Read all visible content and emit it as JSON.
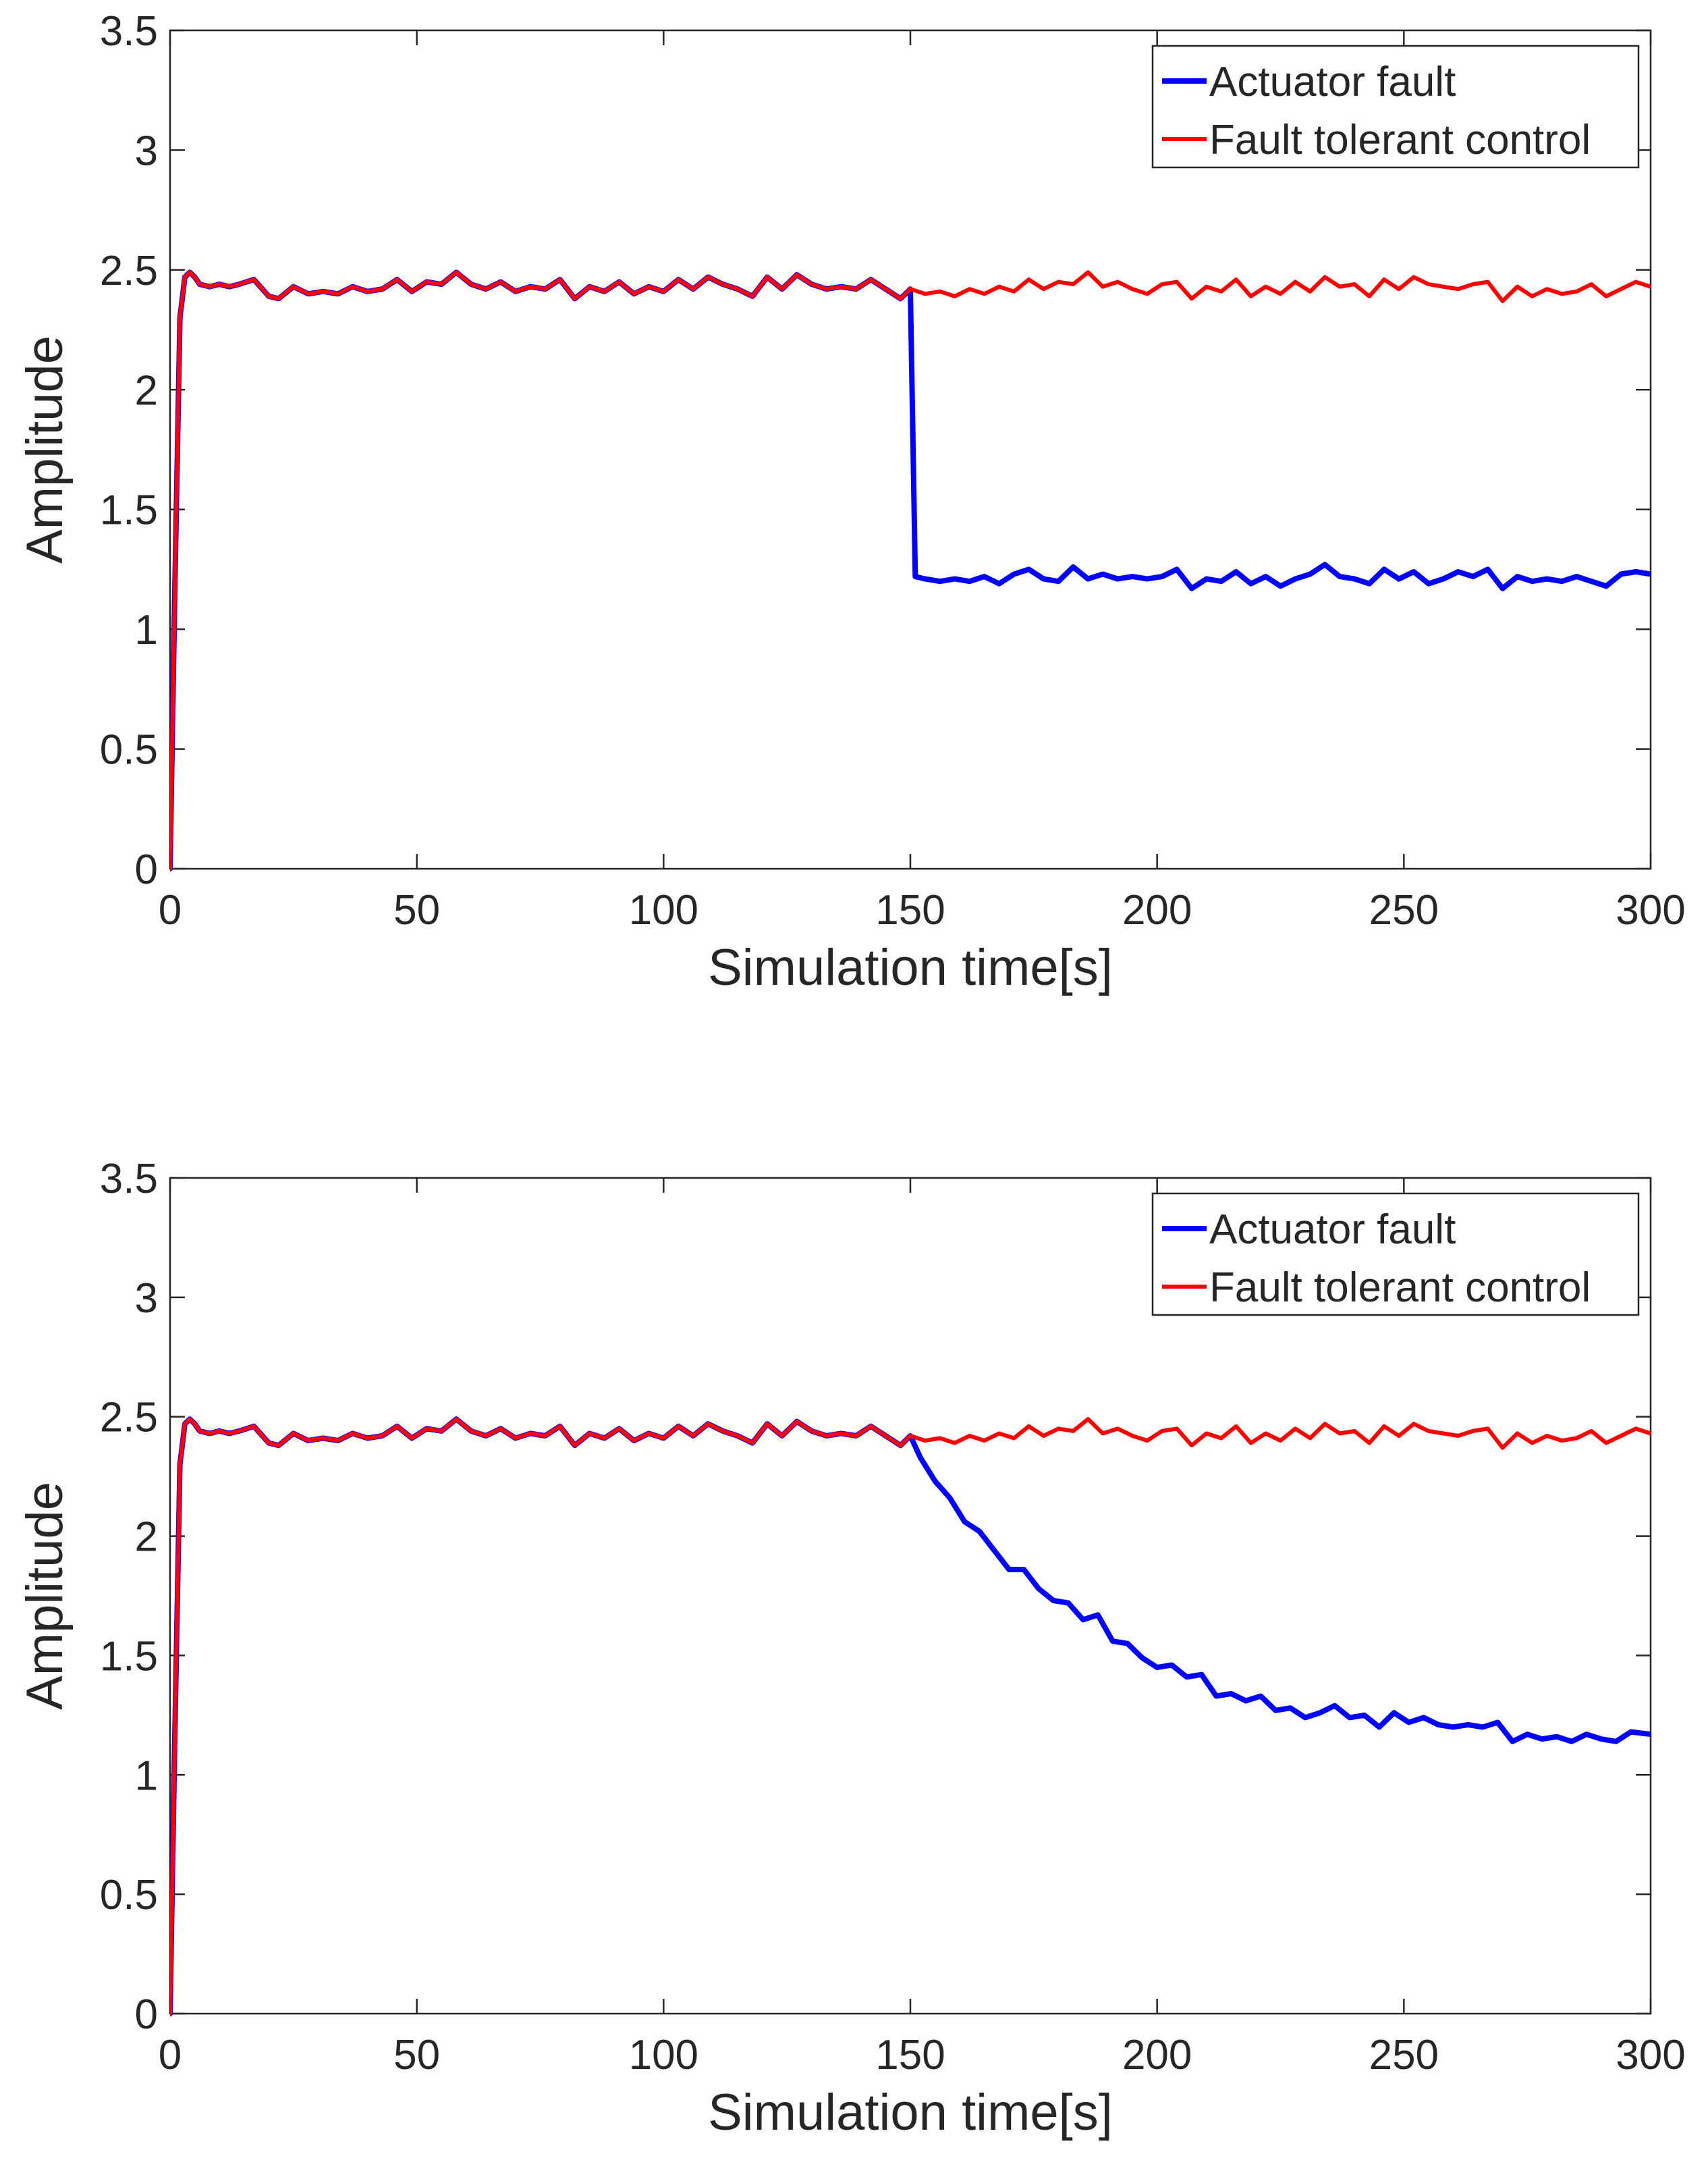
{
  "chart_data": [
    {
      "type": "line",
      "title": "",
      "xlabel": "Simulation time[s]",
      "ylabel": "Amplitude",
      "xlim": [
        0,
        300
      ],
      "ylim": [
        0,
        3.5
      ],
      "xticks": [
        "0",
        "50",
        "100",
        "150",
        "200",
        "250",
        "300"
      ],
      "yticks": [
        "0",
        "0.5",
        "1",
        "1.5",
        "2",
        "2.5",
        "3",
        "3.5"
      ],
      "grid": false,
      "legend_position": "top-right",
      "fault_time": 150,
      "x": [
        0,
        1,
        2,
        3,
        4,
        5,
        6,
        8,
        10,
        12,
        14,
        17,
        20,
        22,
        25,
        28,
        31,
        34,
        37,
        40,
        43,
        46,
        49,
        52,
        55,
        58,
        61,
        64,
        67,
        70,
        73,
        76,
        79,
        82,
        85,
        88,
        91,
        94,
        97,
        100,
        103,
        106,
        109,
        112,
        115,
        118,
        121,
        124,
        127,
        130,
        133,
        136,
        139,
        142,
        145,
        148,
        150
      ],
      "common": [
        0,
        1.2,
        2.3,
        2.47,
        2.49,
        2.47,
        2.44,
        2.43,
        2.44,
        2.43,
        2.44,
        2.46,
        2.39,
        2.38,
        2.43,
        2.4,
        2.41,
        2.4,
        2.43,
        2.41,
        2.42,
        2.46,
        2.41,
        2.45,
        2.44,
        2.49,
        2.44,
        2.42,
        2.45,
        2.41,
        2.43,
        2.42,
        2.46,
        2.38,
        2.43,
        2.41,
        2.45,
        2.4,
        2.43,
        2.41,
        2.46,
        2.42,
        2.47,
        2.44,
        2.42,
        2.39,
        2.47,
        2.42,
        2.48,
        2.44,
        2.42,
        2.43,
        2.42,
        2.46,
        2.42,
        2.38,
        2.42
      ],
      "series": [
        {
          "name": "Actuator fault",
          "color": "#0000ff",
          "after_fault": {
            "x": [
              150,
              151,
              153,
              156,
              159,
              162,
              165,
              168,
              171,
              174,
              177,
              180,
              183,
              186,
              189,
              192,
              195,
              198,
              201,
              204,
              207,
              210,
              213,
              216,
              219,
              222,
              225,
              228,
              231,
              234,
              237,
              240,
              243,
              246,
              249,
              252,
              255,
              258,
              261,
              264,
              267,
              270,
              273,
              276,
              279,
              282,
              285,
              288,
              291,
              294,
              297,
              300
            ],
            "values": [
              2.42,
              1.22,
              1.21,
              1.2,
              1.21,
              1.2,
              1.22,
              1.19,
              1.23,
              1.25,
              1.21,
              1.2,
              1.26,
              1.21,
              1.23,
              1.21,
              1.22,
              1.21,
              1.22,
              1.25,
              1.17,
              1.21,
              1.2,
              1.24,
              1.19,
              1.22,
              1.18,
              1.21,
              1.23,
              1.27,
              1.22,
              1.21,
              1.19,
              1.25,
              1.21,
              1.24,
              1.19,
              1.21,
              1.24,
              1.22,
              1.25,
              1.17,
              1.22,
              1.2,
              1.21,
              1.2,
              1.22,
              1.2,
              1.18,
              1.23,
              1.24,
              1.23
            ]
          }
        },
        {
          "name": "Fault tolerant control",
          "color": "#ff0000",
          "after_fault": {
            "x": [
              150,
              153,
              156,
              159,
              162,
              165,
              168,
              171,
              174,
              177,
              180,
              183,
              186,
              189,
              192,
              195,
              198,
              201,
              204,
              207,
              210,
              213,
              216,
              219,
              222,
              225,
              228,
              231,
              234,
              237,
              240,
              243,
              246,
              249,
              252,
              255,
              258,
              261,
              264,
              267,
              270,
              273,
              276,
              279,
              282,
              285,
              288,
              291,
              294,
              297,
              300
            ],
            "values": [
              2.42,
              2.4,
              2.41,
              2.39,
              2.42,
              2.4,
              2.43,
              2.41,
              2.46,
              2.42,
              2.45,
              2.44,
              2.49,
              2.43,
              2.45,
              2.42,
              2.4,
              2.44,
              2.45,
              2.38,
              2.43,
              2.41,
              2.46,
              2.39,
              2.43,
              2.4,
              2.45,
              2.41,
              2.47,
              2.43,
              2.44,
              2.39,
              2.46,
              2.42,
              2.47,
              2.44,
              2.43,
              2.42,
              2.44,
              2.45,
              2.37,
              2.43,
              2.39,
              2.42,
              2.4,
              2.41,
              2.44,
              2.39,
              2.42,
              2.45,
              2.43
            ]
          }
        }
      ]
    },
    {
      "type": "line",
      "title": "",
      "xlabel": "Simulation time[s]",
      "ylabel": "Amplitude",
      "xlim": [
        0,
        300
      ],
      "ylim": [
        0,
        3.5
      ],
      "xticks": [
        "0",
        "50",
        "100",
        "150",
        "200",
        "250",
        "300"
      ],
      "yticks": [
        "0",
        "0.5",
        "1",
        "1.5",
        "2",
        "2.5",
        "3",
        "3.5"
      ],
      "grid": false,
      "legend_position": "top-right",
      "fault_time": 150,
      "x": [
        0,
        1,
        2,
        3,
        4,
        5,
        6,
        8,
        10,
        12,
        14,
        17,
        20,
        22,
        25,
        28,
        31,
        34,
        37,
        40,
        43,
        46,
        49,
        52,
        55,
        58,
        61,
        64,
        67,
        70,
        73,
        76,
        79,
        82,
        85,
        88,
        91,
        94,
        97,
        100,
        103,
        106,
        109,
        112,
        115,
        118,
        121,
        124,
        127,
        130,
        133,
        136,
        139,
        142,
        145,
        148,
        150
      ],
      "common": [
        0,
        1.2,
        2.3,
        2.47,
        2.49,
        2.47,
        2.44,
        2.43,
        2.44,
        2.43,
        2.44,
        2.46,
        2.39,
        2.38,
        2.43,
        2.4,
        2.41,
        2.4,
        2.43,
        2.41,
        2.42,
        2.46,
        2.41,
        2.45,
        2.44,
        2.49,
        2.44,
        2.42,
        2.45,
        2.41,
        2.43,
        2.42,
        2.46,
        2.38,
        2.43,
        2.41,
        2.45,
        2.4,
        2.43,
        2.41,
        2.46,
        2.42,
        2.47,
        2.44,
        2.42,
        2.39,
        2.47,
        2.42,
        2.48,
        2.44,
        2.42,
        2.43,
        2.42,
        2.46,
        2.42,
        2.38,
        2.42
      ],
      "series": [
        {
          "name": "Actuator fault",
          "color": "#0000ff",
          "after_fault": {
            "x": [
              150,
              152,
              155,
              158,
              161,
              164,
              167,
              170,
              173,
              176,
              179,
              182,
              185,
              188,
              191,
              194,
              197,
              200,
              203,
              206,
              209,
              212,
              215,
              218,
              221,
              224,
              227,
              230,
              233,
              236,
              239,
              242,
              245,
              248,
              251,
              254,
              257,
              260,
              263,
              266,
              269,
              272,
              275,
              278,
              281,
              284,
              287,
              290,
              293,
              296,
              300
            ],
            "values": [
              2.42,
              2.33,
              2.23,
              2.16,
              2.06,
              2.02,
              1.94,
              1.86,
              1.86,
              1.78,
              1.73,
              1.72,
              1.65,
              1.67,
              1.56,
              1.55,
              1.49,
              1.45,
              1.46,
              1.41,
              1.42,
              1.33,
              1.34,
              1.31,
              1.33,
              1.27,
              1.28,
              1.24,
              1.26,
              1.29,
              1.24,
              1.25,
              1.2,
              1.26,
              1.22,
              1.24,
              1.21,
              1.2,
              1.21,
              1.2,
              1.22,
              1.14,
              1.17,
              1.15,
              1.16,
              1.14,
              1.17,
              1.15,
              1.14,
              1.18,
              1.17
            ]
          }
        },
        {
          "name": "Fault tolerant control",
          "color": "#ff0000",
          "after_fault": {
            "x": [
              150,
              153,
              156,
              159,
              162,
              165,
              168,
              171,
              174,
              177,
              180,
              183,
              186,
              189,
              192,
              195,
              198,
              201,
              204,
              207,
              210,
              213,
              216,
              219,
              222,
              225,
              228,
              231,
              234,
              237,
              240,
              243,
              246,
              249,
              252,
              255,
              258,
              261,
              264,
              267,
              270,
              273,
              276,
              279,
              282,
              285,
              288,
              291,
              294,
              297,
              300
            ],
            "values": [
              2.42,
              2.4,
              2.41,
              2.39,
              2.42,
              2.4,
              2.43,
              2.41,
              2.46,
              2.42,
              2.45,
              2.44,
              2.49,
              2.43,
              2.45,
              2.42,
              2.4,
              2.44,
              2.45,
              2.38,
              2.43,
              2.41,
              2.46,
              2.39,
              2.43,
              2.4,
              2.45,
              2.41,
              2.47,
              2.43,
              2.44,
              2.39,
              2.46,
              2.42,
              2.47,
              2.44,
              2.43,
              2.42,
              2.44,
              2.45,
              2.37,
              2.43,
              2.39,
              2.42,
              2.4,
              2.41,
              2.44,
              2.39,
              2.42,
              2.45,
              2.43
            ]
          }
        }
      ]
    }
  ]
}
